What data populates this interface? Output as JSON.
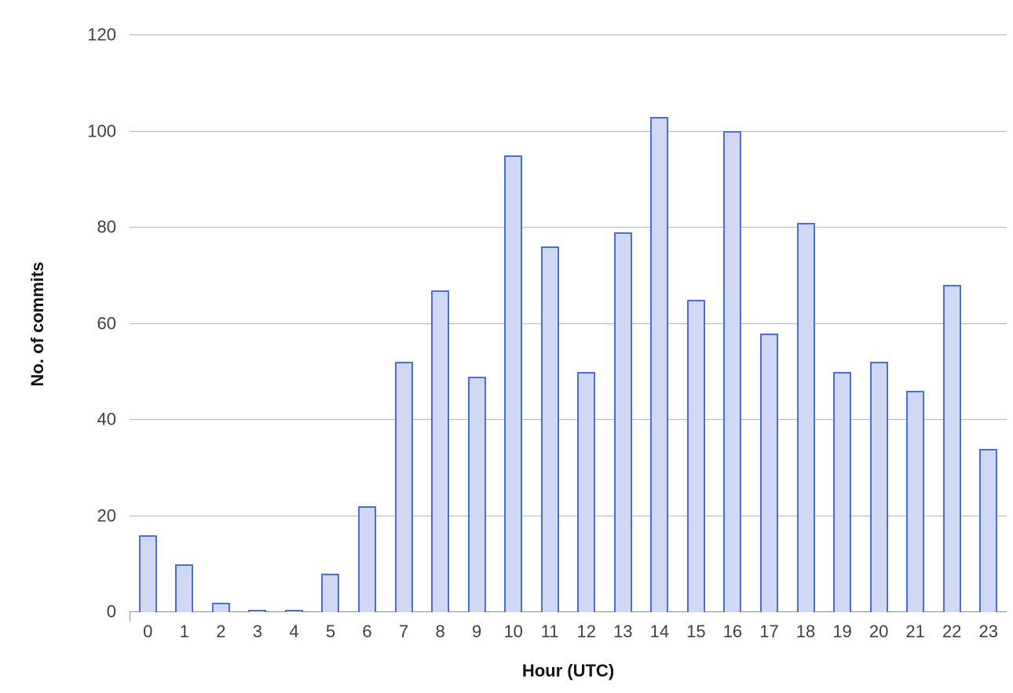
{
  "chart_data": {
    "type": "bar",
    "title": "",
    "xlabel": "Hour (UTC)",
    "ylabel": "No. of commits",
    "categories": [
      "0",
      "1",
      "2",
      "3",
      "4",
      "5",
      "6",
      "7",
      "8",
      "9",
      "10",
      "11",
      "12",
      "13",
      "14",
      "15",
      "16",
      "17",
      "18",
      "19",
      "20",
      "21",
      "22",
      "23"
    ],
    "values": [
      16,
      10,
      2,
      0,
      0,
      8,
      22,
      52,
      67,
      49,
      95,
      76,
      50,
      79,
      103,
      65,
      100,
      58,
      81,
      50,
      52,
      46,
      68,
      34
    ],
    "ylim": [
      0,
      120
    ],
    "yticks": [
      0,
      20,
      40,
      60,
      80,
      100,
      120
    ],
    "grid": true,
    "legend": "none",
    "colors": {
      "bar_fill": "#cfd9f6",
      "bar_stroke": "#4a6de0",
      "gridline": "#b6b6b6",
      "baseline": "#8f8f8f",
      "tick_label": "#404040",
      "axis_title": "#141414",
      "background": "#ffffff"
    }
  }
}
